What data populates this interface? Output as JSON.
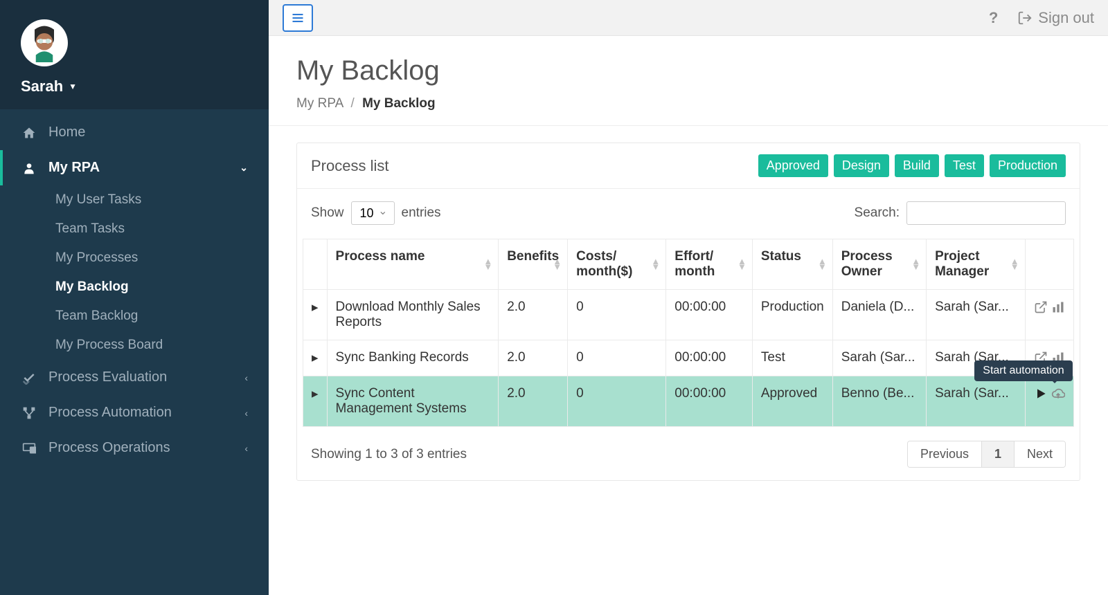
{
  "user": {
    "name": "Sarah"
  },
  "topbar": {
    "help_label": "?",
    "signout_label": "Sign out"
  },
  "nav": {
    "home": "Home",
    "myrpa": {
      "label": "My RPA",
      "items": [
        {
          "label": "My User Tasks"
        },
        {
          "label": "Team Tasks"
        },
        {
          "label": "My Processes"
        },
        {
          "label": "My Backlog"
        },
        {
          "label": "Team Backlog"
        },
        {
          "label": "My Process Board"
        }
      ]
    },
    "process_evaluation": "Process Evaluation",
    "process_automation": "Process Automation",
    "process_operations": "Process Operations"
  },
  "page": {
    "title": "My Backlog",
    "breadcrumb": {
      "root": "My RPA",
      "current": "My Backlog"
    }
  },
  "card": {
    "title": "Process list",
    "filter_badges": [
      "Approved",
      "Design",
      "Build",
      "Test",
      "Production"
    ]
  },
  "table_controls": {
    "show_label": "Show",
    "entries_label": "entries",
    "page_size": "10",
    "search_label": "Search:"
  },
  "table": {
    "columns": [
      "Process name",
      "Benefits",
      "Costs/ month($)",
      "Effort/ month",
      "Status",
      "Process Owner",
      "Project Manager"
    ],
    "rows": [
      {
        "name": "Download Monthly Sales Reports",
        "benefits": "2.0",
        "costs": "0",
        "effort": "00:00:00",
        "status": "Production",
        "owner": "Daniela (D...",
        "manager": "Sarah (Sar...",
        "highlight": false,
        "action_mode": "open"
      },
      {
        "name": "Sync Banking Records",
        "benefits": "2.0",
        "costs": "0",
        "effort": "00:00:00",
        "status": "Test",
        "owner": "Sarah (Sar...",
        "manager": "Sarah (Sar...",
        "highlight": false,
        "action_mode": "open"
      },
      {
        "name": "Sync Content Management Systems",
        "benefits": "2.0",
        "costs": "0",
        "effort": "00:00:00",
        "status": "Approved",
        "owner": "Benno (Be...",
        "manager": "Sarah (Sar...",
        "highlight": true,
        "action_mode": "start"
      }
    ],
    "footer_text": "Showing 1 to 3 of 3 entries"
  },
  "pagination": {
    "prev": "Previous",
    "page": "1",
    "next": "Next"
  },
  "tooltip": {
    "start_automation": "Start automation"
  },
  "colors": {
    "sidebar_bg": "#1e3a4c",
    "sidebar_header_bg": "#1a2f3e",
    "accent_green": "#1abc9c",
    "row_highlight": "#a8e0cf",
    "hamburger_border": "#2d7ad6"
  }
}
